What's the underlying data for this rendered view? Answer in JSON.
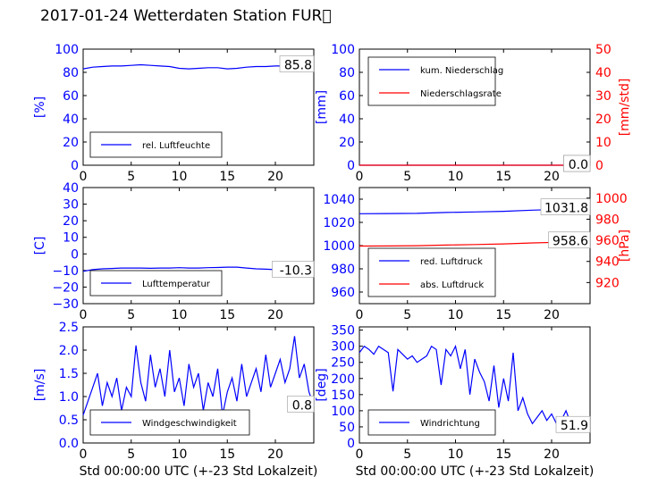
{
  "figure": {
    "title": "2017-01-24 Wetterdaten Station FUR\u0000",
    "colors": {
      "left_axis": "#0000ff",
      "right_axis": "#ff0000",
      "line_blue": "#0000ff",
      "line_red": "#ff0000",
      "text": "#000000"
    }
  },
  "chart_data": [
    {
      "type": "line",
      "xlim": [
        0,
        24
      ],
      "ylim": [
        0,
        100
      ],
      "xticks": [
        "0",
        "5",
        "10",
        "15",
        "20"
      ],
      "yticks": [
        "0",
        "20",
        "40",
        "60",
        "80",
        "100"
      ],
      "xlabel": "",
      "ylabel": "[%]",
      "legend_placement": "lower-left",
      "annotation": "85.8",
      "series": [
        {
          "name": "rel. Luftfeuchte",
          "axis": "left",
          "color": "#0000ff",
          "x": [
            0,
            1,
            2,
            3,
            4,
            5,
            6,
            7,
            8,
            9,
            10,
            11,
            12,
            13,
            14,
            15,
            16,
            17,
            18,
            19,
            20,
            21,
            22,
            23,
            24
          ],
          "y": [
            83,
            84.5,
            85,
            85.5,
            85.5,
            86,
            86.5,
            86,
            85.5,
            85,
            83.5,
            83,
            83.5,
            84,
            84,
            83,
            83.5,
            84.5,
            85,
            85,
            85.5,
            85.5,
            85.8,
            85.8,
            85.8
          ]
        }
      ]
    },
    {
      "type": "line",
      "xlim": [
        0,
        24
      ],
      "ylim": [
        0,
        100
      ],
      "ylim_right": [
        0,
        50
      ],
      "xticks": [
        "0",
        "5",
        "10",
        "15",
        "20"
      ],
      "yticks": [
        "0",
        "20",
        "40",
        "60",
        "80",
        "100"
      ],
      "yticks_right": [
        "0",
        "10",
        "20",
        "30",
        "40",
        "50"
      ],
      "xlabel": "",
      "ylabel": "[mm]",
      "ylabel_right": "[mm/std]",
      "legend_placement": "upper-left",
      "annotation": "0.0",
      "annotation2": "0.0",
      "series": [
        {
          "name": "kum. Niederschlag",
          "axis": "left",
          "color": "#0000ff",
          "x": [
            0,
            24
          ],
          "y": [
            0,
            0
          ]
        },
        {
          "name": "Niederschlagsrate",
          "axis": "right",
          "color": "#ff0000",
          "x": [
            0,
            24
          ],
          "y": [
            0,
            0
          ]
        }
      ]
    },
    {
      "type": "line",
      "xlim": [
        0,
        24
      ],
      "ylim": [
        -30,
        40
      ],
      "xticks": [
        "0",
        "5",
        "10",
        "15",
        "20"
      ],
      "yticks": [
        "−30",
        "−20",
        "−10",
        "0",
        "10",
        "20",
        "30",
        "40"
      ],
      "xlabel": "",
      "ylabel": "[C]",
      "legend_placement": "lower-left",
      "annotation": "-10.3",
      "series": [
        {
          "name": "Lufttemperatur",
          "axis": "left",
          "color": "#0000ff",
          "x": [
            0,
            1,
            2,
            3,
            4,
            5,
            6,
            7,
            8,
            9,
            10,
            11,
            12,
            13,
            14,
            15,
            16,
            17,
            18,
            19,
            20,
            21,
            22,
            23,
            24
          ],
          "y": [
            -10.5,
            -9.5,
            -9,
            -8.8,
            -8.5,
            -8.5,
            -8.5,
            -8.7,
            -8.5,
            -8.5,
            -8.3,
            -8.5,
            -8.5,
            -8.3,
            -8.2,
            -8,
            -8,
            -8.5,
            -9,
            -9.2,
            -9.5,
            -9.8,
            -10,
            -10.2,
            -10.3
          ]
        }
      ]
    },
    {
      "type": "line",
      "xlim": [
        0,
        24
      ],
      "ylim": [
        950,
        1050
      ],
      "ylim_right": [
        900,
        1010
      ],
      "xticks": [
        "0",
        "5",
        "10",
        "15",
        "20"
      ],
      "yticks": [
        "960",
        "980",
        "1000",
        "1020",
        "1040"
      ],
      "yticks_right": [
        "920",
        "940",
        "960",
        "980",
        "1000"
      ],
      "xlabel": "",
      "ylabel": "",
      "ylabel_right": "[hPa]",
      "legend_placement": "lower-left",
      "annotation": "1031.8",
      "annotation2": "958.6",
      "series": [
        {
          "name": "red. Luftdruck",
          "axis": "left",
          "color": "#0000ff",
          "x": [
            0,
            3,
            6,
            9,
            12,
            15,
            18,
            21,
            24
          ],
          "y": [
            1027.5,
            1027.6,
            1027.8,
            1028.5,
            1029,
            1029.5,
            1030.5,
            1031.3,
            1031.8
          ]
        },
        {
          "name": "abs. Luftdruck",
          "axis": "right",
          "color": "#ff0000",
          "x": [
            0,
            3,
            6,
            9,
            12,
            15,
            18,
            21,
            24
          ],
          "y": [
            954.6,
            954.7,
            954.9,
            955.5,
            956,
            956.6,
            957.5,
            958.2,
            958.6
          ]
        }
      ]
    },
    {
      "type": "line",
      "xlim": [
        0,
        24
      ],
      "ylim": [
        0,
        2.5
      ],
      "xticks": [
        "0",
        "5",
        "10",
        "15",
        "20"
      ],
      "yticks": [
        "0.0",
        "0.5",
        "1.0",
        "1.5",
        "2.0",
        "2.5"
      ],
      "xlabel": "Std 00:00:00 UTC (+-23 Std Lokalzeit)",
      "ylabel": "[m/s]",
      "legend_placement": "lower-left",
      "annotation": "0.8",
      "series": [
        {
          "name": "Windgeschwindigkeit",
          "axis": "left",
          "color": "#0000ff",
          "x": [
            0,
            0.5,
            1,
            1.5,
            2,
            2.5,
            3,
            3.5,
            4,
            4.5,
            5,
            5.5,
            6,
            6.5,
            7,
            7.5,
            8,
            8.5,
            9,
            9.5,
            10,
            10.5,
            11,
            11.5,
            12,
            12.5,
            13,
            13.5,
            14,
            14.5,
            15,
            15.5,
            16,
            16.5,
            17,
            17.5,
            18,
            18.5,
            19,
            19.5,
            20,
            20.5,
            21,
            21.5,
            22,
            22.5,
            23,
            23.5,
            24
          ],
          "y": [
            0.6,
            0.9,
            1.2,
            1.5,
            0.8,
            1.3,
            1.0,
            1.4,
            0.7,
            1.2,
            1.0,
            2.1,
            1.3,
            0.9,
            1.9,
            1.2,
            1.6,
            1.0,
            2.0,
            1.1,
            1.4,
            0.8,
            1.7,
            1.2,
            1.5,
            0.7,
            1.3,
            1.0,
            1.6,
            0.6,
            1.1,
            1.4,
            0.9,
            1.7,
            1.0,
            1.3,
            1.6,
            1.1,
            1.9,
            1.2,
            1.5,
            1.8,
            1.3,
            1.6,
            2.3,
            1.4,
            1.7,
            1.1,
            0.8
          ]
        }
      ]
    },
    {
      "type": "line",
      "xlim": [
        0,
        24
      ],
      "ylim": [
        0,
        360
      ],
      "xticks": [
        "0",
        "5",
        "10",
        "15",
        "20"
      ],
      "yticks": [
        "0",
        "50",
        "100",
        "150",
        "200",
        "250",
        "300",
        "350"
      ],
      "xlabel": "Std 00:00:00 UTC (+-23 Std Lokalzeit)",
      "ylabel": "[deg]",
      "legend_placement": "lower-left",
      "annotation": "51.9",
      "series": [
        {
          "name": "Windrichtung",
          "axis": "left",
          "color": "#0000ff",
          "x": [
            0,
            0.5,
            1,
            1.5,
            2,
            2.5,
            3,
            3.5,
            4,
            4.5,
            5,
            5.5,
            6,
            6.5,
            7,
            7.5,
            8,
            8.5,
            9,
            9.5,
            10,
            10.5,
            11,
            11.5,
            12,
            12.5,
            13,
            13.5,
            14,
            14.5,
            15,
            15.5,
            16,
            16.5,
            17,
            17.5,
            18,
            18.5,
            19,
            19.5,
            20,
            20.5,
            21,
            21.5,
            22,
            22.5,
            23,
            23.5,
            24
          ],
          "y": [
            280,
            300,
            290,
            275,
            300,
            290,
            280,
            160,
            290,
            275,
            260,
            270,
            250,
            260,
            270,
            300,
            290,
            180,
            290,
            270,
            300,
            230,
            290,
            150,
            260,
            220,
            190,
            130,
            240,
            110,
            200,
            130,
            280,
            100,
            140,
            90,
            60,
            80,
            100,
            70,
            90,
            60,
            70,
            100,
            60,
            50,
            70,
            60,
            52
          ]
        }
      ]
    }
  ]
}
